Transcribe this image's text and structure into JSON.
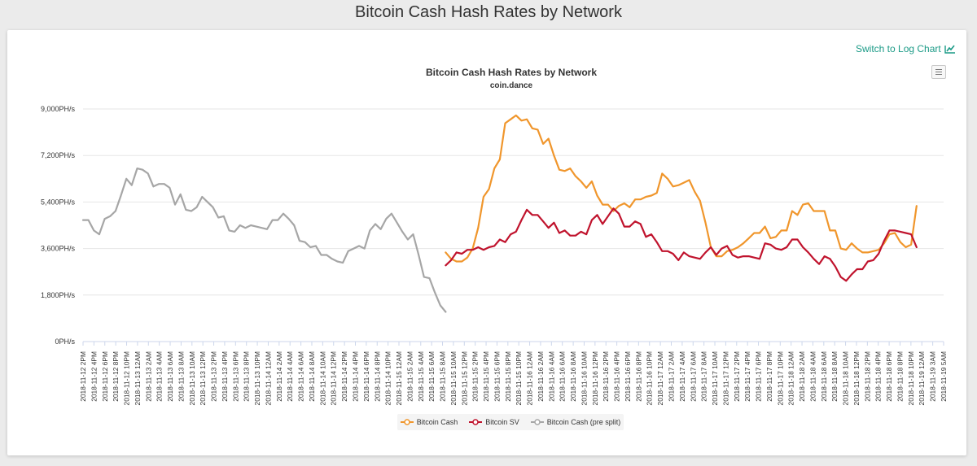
{
  "page": {
    "title": "Bitcoin Cash Hash Rates by Network"
  },
  "toolbar": {
    "log_chart_label": "Switch to Log Chart",
    "chart_icon": "line-chart-icon",
    "menu_icon": "hamburger-menu-icon"
  },
  "colors": {
    "bitcoin_cash": "#f0962c",
    "bitcoin_sv": "#c0132d",
    "pre_split": "#a6a6a6",
    "link": "#1a9a86"
  },
  "chart_data": {
    "type": "line",
    "title": "Bitcoin Cash Hash Rates by Network",
    "subtitle": "coin.dance",
    "xlabel": "",
    "ylabel": "",
    "ylim": [
      0,
      9000
    ],
    "y_ticks": [
      0,
      1800,
      3600,
      5400,
      7200,
      9000
    ],
    "y_tick_labels": [
      "0PH/s",
      "1,800PH/s",
      "3,600PH/s",
      "5,400PH/s",
      "7,200PH/s",
      "9,000PH/s"
    ],
    "x_labels": [
      "2018-11-12 2PM",
      "2018-11-12 4PM",
      "2018-11-12 6PM",
      "2018-11-12 8PM",
      "2018-11-12 10PM",
      "2018-11-13 12AM",
      "2018-11-13 2AM",
      "2018-11-13 4AM",
      "2018-11-13 6AM",
      "2018-11-13 8AM",
      "2018-11-13 10AM",
      "2018-11-13 12PM",
      "2018-11-13 2PM",
      "2018-11-13 4PM",
      "2018-11-13 6PM",
      "2018-11-13 8PM",
      "2018-11-13 10PM",
      "2018-11-14 12AM",
      "2018-11-14 2AM",
      "2018-11-14 4AM",
      "2018-11-14 6AM",
      "2018-11-14 8AM",
      "2018-11-14 10AM",
      "2018-11-14 12PM",
      "2018-11-14 2PM",
      "2018-11-14 4PM",
      "2018-11-14 6PM",
      "2018-11-14 8PM",
      "2018-11-14 10PM",
      "2018-11-15 12AM",
      "2018-11-15 2AM",
      "2018-11-15 4AM",
      "2018-11-15 6AM",
      "2018-11-15 8AM",
      "2018-11-15 10AM",
      "2018-11-15 12PM",
      "2018-11-15 2PM",
      "2018-11-15 4PM",
      "2018-11-15 6PM",
      "2018-11-15 8PM",
      "2018-11-15 10PM",
      "2018-11-16 12AM",
      "2018-11-16 2AM",
      "2018-11-16 4AM",
      "2018-11-16 6AM",
      "2018-11-16 8AM",
      "2018-11-16 10AM",
      "2018-11-16 12PM",
      "2018-11-16 2PM",
      "2018-11-16 4PM",
      "2018-11-16 6PM",
      "2018-11-16 8PM",
      "2018-11-16 10PM",
      "2018-11-17 12AM",
      "2018-11-17 2AM",
      "2018-11-17 4AM",
      "2018-11-17 6AM",
      "2018-11-17 8AM",
      "2018-11-17 10AM",
      "2018-11-17 12PM",
      "2018-11-17 2PM",
      "2018-11-17 4PM",
      "2018-11-17 6PM",
      "2018-11-17 8PM",
      "2018-11-17 10PM",
      "2018-11-18 12AM",
      "2018-11-18 2AM",
      "2018-11-18 4AM",
      "2018-11-18 6AM",
      "2018-11-18 8AM",
      "2018-11-18 10AM",
      "2018-11-18 12PM",
      "2018-11-18 2PM",
      "2018-11-18 4PM",
      "2018-11-18 6PM",
      "2018-11-18 8PM",
      "2018-11-18 10PM",
      "2018-11-19 12AM",
      "2018-11-19 3AM",
      "2018-11-19 5AM"
    ],
    "x_points": 160,
    "series": [
      {
        "name": "Bitcoin Cash (pre split)",
        "color": "#a6a6a6",
        "start_index": 0,
        "values": [
          4700,
          4700,
          4300,
          4150,
          4750,
          4850,
          5050,
          5650,
          6300,
          6050,
          6700,
          6650,
          6500,
          6000,
          6100,
          6100,
          5950,
          5300,
          5700,
          5100,
          5050,
          5200,
          5600,
          5400,
          5200,
          4800,
          4850,
          4300,
          4250,
          4500,
          4400,
          4500,
          4450,
          4400,
          4350,
          4700,
          4700,
          4950,
          4750,
          4500,
          3900,
          3850,
          3650,
          3700,
          3350,
          3350,
          3200,
          3100,
          3050,
          3500,
          3600,
          3700,
          3600,
          4300,
          4550,
          4350,
          4750,
          4950,
          4600,
          4250,
          3950,
          4150,
          3350,
          2500,
          2450,
          1900,
          1400,
          1150
        ]
      },
      {
        "name": "Bitcoin Cash",
        "color": "#f0962c",
        "start_index": 67,
        "values": [
          3450,
          3200,
          3100,
          3100,
          3250,
          3600,
          4400,
          5600,
          5900,
          6700,
          7050,
          8450,
          8600,
          8750,
          8550,
          8600,
          8250,
          8200,
          7650,
          7850,
          7200,
          6650,
          6600,
          6700,
          6400,
          6200,
          5950,
          6200,
          5650,
          5300,
          5300,
          5050,
          5250,
          5350,
          5200,
          5500,
          5500,
          5600,
          5650,
          5750,
          6500,
          6300,
          6000,
          6050,
          6150,
          6250,
          5800,
          5450,
          4600,
          3650,
          3300,
          3300,
          3500,
          3550,
          3650,
          3800,
          4000,
          4200,
          4200,
          4450,
          4000,
          4050,
          4300,
          4300,
          5050,
          4900,
          5300,
          5350,
          5050,
          5050,
          5050,
          4300,
          4300,
          3600,
          3550,
          3800,
          3600,
          3450,
          3450,
          3500,
          3550,
          3800,
          4150,
          4200,
          3850,
          3650,
          3750,
          5250
        ]
      },
      {
        "name": "Bitcoin SV",
        "color": "#c0132d",
        "start_index": 67,
        "values": [
          2950,
          3150,
          3450,
          3400,
          3550,
          3550,
          3650,
          3550,
          3650,
          3700,
          3950,
          3850,
          4150,
          4250,
          4700,
          5100,
          4900,
          4900,
          4650,
          4400,
          4600,
          4200,
          4300,
          4100,
          4100,
          4250,
          4150,
          4700,
          4900,
          4550,
          4850,
          5150,
          4950,
          4450,
          4450,
          4650,
          4550,
          4050,
          4150,
          3850,
          3500,
          3500,
          3400,
          3150,
          3450,
          3300,
          3250,
          3200,
          3450,
          3650,
          3350,
          3600,
          3700,
          3350,
          3250,
          3300,
          3300,
          3250,
          3200,
          3800,
          3750,
          3600,
          3550,
          3650,
          3950,
          3950,
          3650,
          3450,
          3200,
          3000,
          3300,
          3200,
          2900,
          2500,
          2350,
          2600,
          2800,
          2800,
          3100,
          3150,
          3400,
          3900,
          4300,
          4300,
          4250,
          4200,
          4150,
          3650
        ]
      }
    ],
    "legend": [
      "Bitcoin Cash",
      "Bitcoin SV",
      "Bitcoin Cash (pre split)"
    ],
    "legend_position": "bottom-center",
    "grid": true
  }
}
